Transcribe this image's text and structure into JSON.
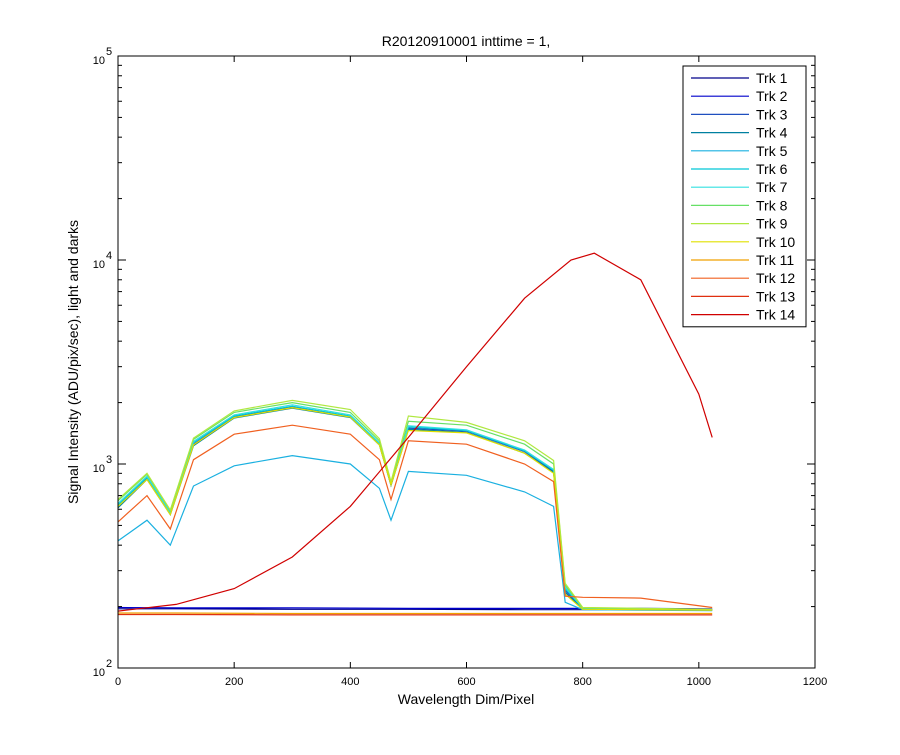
{
  "chart_data": {
    "type": "line",
    "title": "R20120910001 inttime = 1,",
    "xlabel": "Wavelength Dim/Pixel",
    "ylabel": "Signal Intensity (ADU/pix/sec), light and darks",
    "xlim": [
      0,
      1200
    ],
    "ylim": [
      100,
      100000
    ],
    "yscale": "log",
    "x_ticks": [
      0,
      200,
      400,
      600,
      800,
      1000,
      1200
    ],
    "x_tick_labels": [
      "0",
      "200",
      "400",
      "600",
      "800",
      "1000",
      "1200"
    ],
    "y_ticks": [
      {
        "value": 100,
        "base": "10",
        "exp": "2"
      },
      {
        "value": 1000,
        "base": "10",
        "exp": "3"
      },
      {
        "value": 10000,
        "base": "10",
        "exp": "4"
      },
      {
        "value": 100000,
        "base": "10",
        "exp": "5"
      }
    ],
    "grid": false,
    "legend_position": "top-right",
    "series": [
      {
        "name": "Trk 1",
        "color": "#00008b",
        "x": [
          0,
          100,
          300,
          500,
          700,
          900,
          1023
        ],
        "y": [
          195,
          195,
          194,
          194,
          193,
          193,
          193
        ]
      },
      {
        "name": "Trk 2",
        "color": "#0000cc",
        "x": [
          0,
          100,
          300,
          500,
          700,
          900,
          1023
        ],
        "y": [
          198,
          197,
          197,
          196,
          196,
          196,
          195
        ]
      },
      {
        "name": "Trk 3",
        "color": "#1f4fbf",
        "x": [
          0,
          50,
          90,
          130,
          200,
          300,
          400,
          450,
          470,
          500,
          600,
          700,
          750,
          770,
          800,
          1023
        ],
        "y": [
          620,
          850,
          570,
          1250,
          1700,
          1900,
          1700,
          1250,
          790,
          1500,
          1450,
          1150,
          920,
          240,
          195,
          193
        ]
      },
      {
        "name": "Trk 4",
        "color": "#0080a0",
        "x": [
          0,
          50,
          90,
          130,
          200,
          300,
          400,
          450,
          470,
          500,
          600,
          700,
          750,
          770,
          800,
          1023
        ],
        "y": [
          610,
          840,
          565,
          1230,
          1680,
          1880,
          1690,
          1240,
          785,
          1480,
          1430,
          1130,
          910,
          235,
          194,
          192
        ]
      },
      {
        "name": "Trk 5",
        "color": "#1ab0e0",
        "x": [
          0,
          50,
          90,
          130,
          200,
          300,
          400,
          450,
          470,
          500,
          600,
          700,
          750,
          770,
          800,
          1023
        ],
        "y": [
          420,
          530,
          400,
          780,
          980,
          1100,
          1000,
          760,
          530,
          920,
          880,
          730,
          620,
          210,
          193,
          191
        ]
      },
      {
        "name": "Trk 6",
        "color": "#00c8d8",
        "x": [
          0,
          50,
          90,
          130,
          200,
          300,
          400,
          450,
          470,
          500,
          600,
          700,
          750,
          770,
          800,
          1023
        ],
        "y": [
          630,
          860,
          575,
          1270,
          1720,
          1920,
          1720,
          1260,
          795,
          1520,
          1460,
          1160,
          930,
          245,
          196,
          193
        ]
      },
      {
        "name": "Trk 7",
        "color": "#33e0e0",
        "x": [
          0,
          50,
          90,
          130,
          200,
          300,
          400,
          450,
          470,
          500,
          600,
          700,
          750,
          770,
          800,
          1023
        ],
        "y": [
          640,
          870,
          580,
          1290,
          1740,
          1950,
          1740,
          1270,
          800,
          1540,
          1470,
          1170,
          940,
          250,
          196,
          193
        ]
      },
      {
        "name": "Trk 8",
        "color": "#66e066",
        "x": [
          0,
          50,
          90,
          130,
          200,
          300,
          400,
          450,
          470,
          500,
          600,
          700,
          750,
          770,
          800,
          1023
        ],
        "y": [
          660,
          890,
          590,
          1320,
          1790,
          2000,
          1790,
          1300,
          810,
          1620,
          1550,
          1250,
          1000,
          255,
          197,
          194
        ]
      },
      {
        "name": "Trk 9",
        "color": "#b0e840",
        "x": [
          0,
          50,
          90,
          130,
          200,
          300,
          400,
          450,
          470,
          500,
          600,
          700,
          750,
          770,
          800,
          1023
        ],
        "y": [
          670,
          900,
          595,
          1340,
          1820,
          2050,
          1850,
          1330,
          820,
          1720,
          1600,
          1300,
          1040,
          260,
          198,
          194
        ]
      },
      {
        "name": "Trk 10",
        "color": "#e0e000",
        "x": [
          0,
          50,
          90,
          130,
          200,
          300,
          400,
          450,
          470,
          500,
          600,
          700,
          750,
          770,
          800,
          1023
        ],
        "y": [
          620,
          840,
          565,
          1240,
          1690,
          1890,
          1700,
          1240,
          790,
          1460,
          1420,
          1130,
          900,
          230,
          194,
          192
        ]
      },
      {
        "name": "Trk 11",
        "color": "#f0a000",
        "x": [
          0,
          100,
          300,
          500,
          700,
          900,
          1023
        ],
        "y": [
          186,
          186,
          185,
          185,
          185,
          185,
          185
        ]
      },
      {
        "name": "Trk 12",
        "color": "#f06020",
        "x": [
          0,
          50,
          90,
          130,
          200,
          300,
          400,
          450,
          470,
          500,
          600,
          700,
          750,
          770,
          800,
          900,
          1023
        ],
        "y": [
          520,
          700,
          480,
          1050,
          1400,
          1550,
          1400,
          1050,
          670,
          1300,
          1250,
          1000,
          820,
          225,
          222,
          220,
          198
        ]
      },
      {
        "name": "Trk 13",
        "color": "#e03010",
        "x": [
          0,
          100,
          300,
          500,
          700,
          900,
          1023
        ],
        "y": [
          183,
          183,
          182,
          182,
          182,
          182,
          182
        ]
      },
      {
        "name": "Trk 14",
        "color": "#d00000",
        "x": [
          0,
          100,
          200,
          300,
          400,
          500,
          600,
          700,
          780,
          820,
          900,
          1000,
          1023
        ],
        "y": [
          190,
          205,
          245,
          350,
          620,
          1350,
          3000,
          6500,
          10000,
          10800,
          8000,
          2200,
          1350
        ]
      }
    ]
  }
}
